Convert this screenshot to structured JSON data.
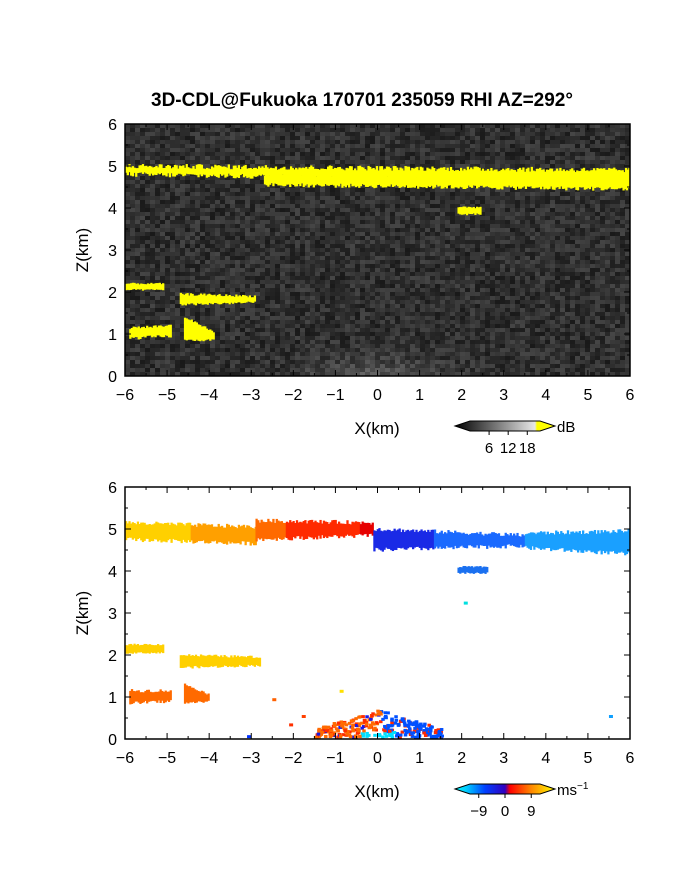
{
  "chart_data": [
    {
      "type": "heatmap",
      "title": "3D-CDL@Fukuoka 170701 235059 RHI AZ=292°",
      "xlabel": "X(km)",
      "ylabel": "Z(km)",
      "xlim": [
        -6,
        6
      ],
      "ylim": [
        0,
        6
      ],
      "xticks": [
        "-6",
        "-5",
        "-4",
        "-3",
        "-2",
        "-1",
        "0",
        "1",
        "2",
        "3",
        "4",
        "5",
        "6"
      ],
      "yticks": [
        "0",
        "1",
        "2",
        "3",
        "4",
        "5",
        "6"
      ],
      "quantity": "backscatter intensity",
      "background_color": "#222222",
      "strong_echo_color": "#ffff00",
      "colorbar": {
        "unit": "dB",
        "tick_labels": [
          "6",
          "12",
          "18"
        ],
        "tick_values": [
          6,
          12,
          18
        ],
        "range": [
          0,
          22
        ]
      },
      "features": [
        {
          "layer": "cloud-base-upper",
          "x": [
            -6,
            6
          ],
          "z_base_km": [
            4.8,
            4.6
          ],
          "z_top_km": [
            5.0,
            4.9
          ],
          "value_db": "> 18"
        },
        {
          "layer": "patch-mid",
          "x": [
            1.8,
            2.5
          ],
          "z_km": [
            3.85,
            4.0
          ],
          "value_db": "> 18"
        },
        {
          "layer": "layer-2km",
          "x": [
            -6,
            -2.9
          ],
          "z_km": [
            1.7,
            2.2
          ],
          "value_db": "> 18"
        },
        {
          "layer": "layer-1km",
          "x": [
            -6,
            -4.0
          ],
          "z_km": [
            0.8,
            1.2
          ],
          "value_db": "> 18"
        },
        {
          "layer": "boundary-layer",
          "x": [
            -2.5,
            2.0
          ],
          "z_km": [
            0,
            0.7
          ],
          "value_db": "about 8"
        }
      ]
    },
    {
      "type": "heatmap",
      "title": "",
      "xlabel": "X(km)",
      "ylabel": "Z(km)",
      "xlim": [
        -6,
        6
      ],
      "ylim": [
        0,
        6
      ],
      "xticks": [
        "-6",
        "-5",
        "-4",
        "-3",
        "-2",
        "-1",
        "0",
        "1",
        "2",
        "3",
        "4",
        "5",
        "6"
      ],
      "yticks": [
        "0",
        "1",
        "2",
        "3",
        "4",
        "5",
        "6"
      ],
      "quantity": "radial velocity",
      "background_color": "#ffffff",
      "colorbar": {
        "unit": "ms",
        "unit_exponent": "−1",
        "tick_labels": [
          "−9",
          "0",
          "9"
        ],
        "tick_values": [
          -9,
          0,
          9
        ],
        "range": [
          -12,
          12
        ]
      },
      "features": [
        {
          "layer": "cloud-base-upper-west",
          "x": [
            -6,
            -1.8
          ],
          "z_km": [
            4.6,
            5.2
          ],
          "velocity_ms": [
            7,
            4
          ]
        },
        {
          "layer": "cloud-base-upper-center",
          "x": [
            -1.8,
            0
          ],
          "z_km": [
            4.7,
            5.2
          ],
          "velocity_ms": [
            2,
            0
          ]
        },
        {
          "layer": "cloud-base-upper-east",
          "x": [
            0,
            6
          ],
          "z_km": [
            4.4,
            5.0
          ],
          "velocity_ms": [
            -9,
            -6
          ]
        },
        {
          "layer": "patch-mid",
          "x": [
            1.8,
            2.6
          ],
          "z_km": [
            3.95,
            4.1
          ],
          "velocity_ms": -7
        },
        {
          "layer": "layer-2km",
          "x": [
            -6,
            -2.8
          ],
          "z_km": [
            1.7,
            2.3
          ],
          "velocity_ms": 9
        },
        {
          "layer": "layer-1km",
          "x": [
            -6,
            -4.0
          ],
          "z_km": [
            0.8,
            1.2
          ],
          "velocity_ms": 3
        },
        {
          "layer": "boundary-layer",
          "x": [
            -1.5,
            1.5
          ],
          "z_km": [
            0,
            0.65
          ],
          "velocity_ms": [
            3,
            -8
          ]
        }
      ]
    }
  ]
}
